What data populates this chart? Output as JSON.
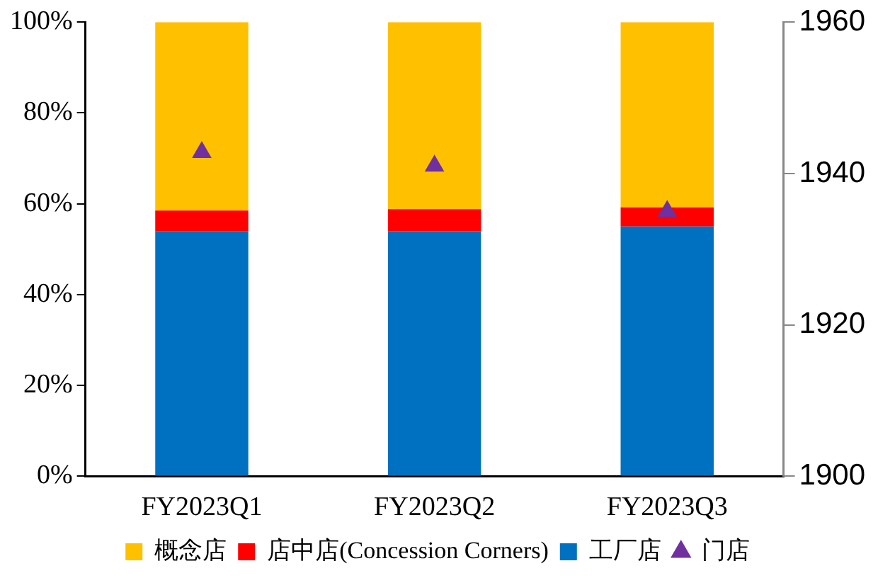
{
  "chart_data": {
    "type": "bar",
    "stacked": true,
    "categories": [
      "FY2023Q1",
      "FY2023Q2",
      "FY2023Q3"
    ],
    "series": [
      {
        "name": "工厂店",
        "color": "#0070c0",
        "values": [
          53.9,
          54.0,
          55.0
        ]
      },
      {
        "name": "店中店(Concession Corners)",
        "color": "#ff0000",
        "values": [
          4.6,
          4.8,
          4.2
        ]
      },
      {
        "name": "概念店",
        "color": "#ffc000",
        "values": [
          41.5,
          41.2,
          40.8
        ]
      },
      {
        "name": "门店",
        "type": "scatter",
        "marker": "triangle",
        "axis": "y2",
        "color": "#7030a0",
        "x": [
          "FY2023Q1",
          "FY2023Q2",
          "FY2023Q3"
        ],
        "values": [
          1942.8,
          1941,
          1935
        ]
      }
    ],
    "ylim": [
      0,
      100
    ],
    "yticks": [
      {
        "value": 0,
        "label": "0%"
      },
      {
        "value": 20,
        "label": "20%"
      },
      {
        "value": 40,
        "label": "40%"
      },
      {
        "value": 60,
        "label": "60%"
      },
      {
        "value": 80,
        "label": "80%"
      },
      {
        "value": 100,
        "label": "100%"
      }
    ],
    "y2lim": [
      1900,
      1960
    ],
    "y2ticks": [
      1900,
      1920,
      1940,
      1960
    ],
    "grid": false,
    "legend": "bottom"
  }
}
